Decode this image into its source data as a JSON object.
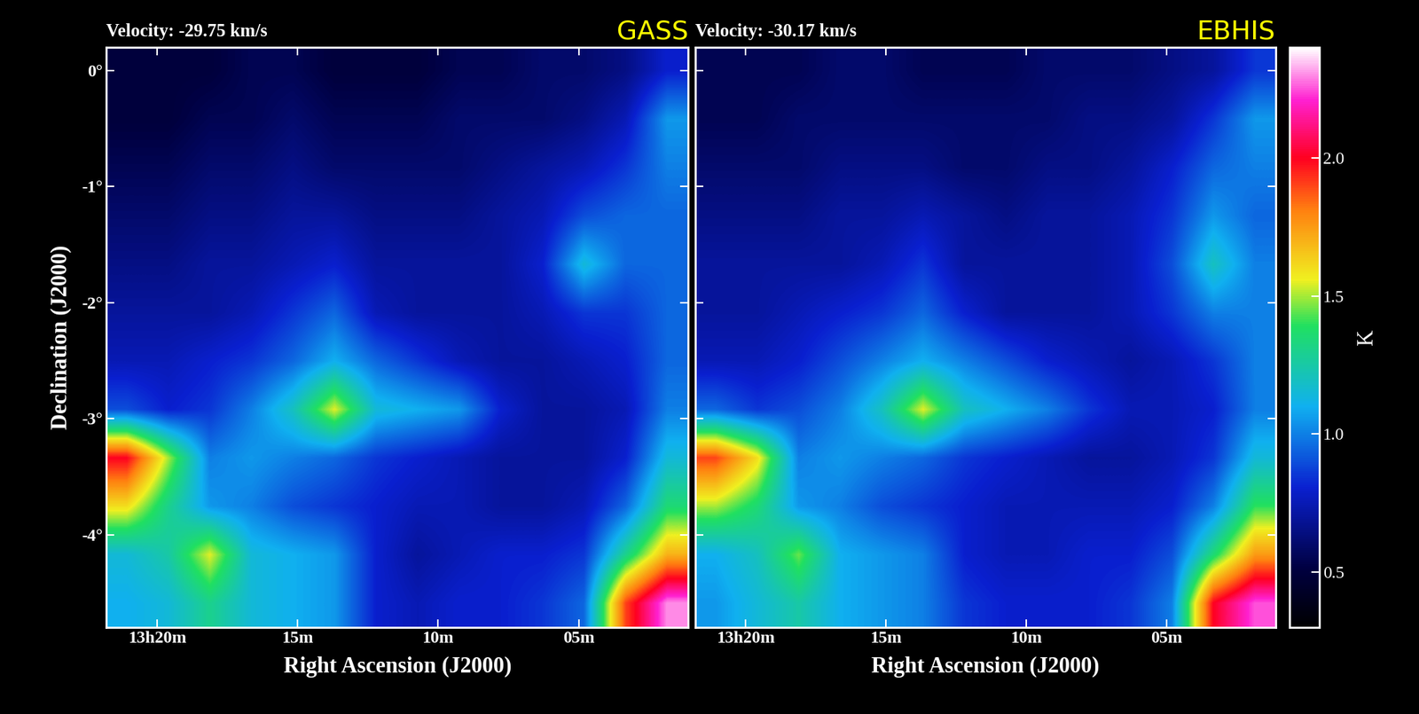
{
  "chart_data": [
    {
      "type": "heatmap",
      "title": "Velocity: -29.75 km/s",
      "annotations": [
        {
          "text": "GASS",
          "color": "#ffff00"
        }
      ],
      "x_label": "Right Ascension (J2000)",
      "y_label": "Declination (J2000)",
      "xlim": [
        21.8,
        1.1
      ],
      "ylim": [
        -4.8,
        0.2
      ],
      "xticks": [
        {
          "value": 20,
          "label": "13h20m"
        },
        {
          "value": 15,
          "label": "15m"
        },
        {
          "value": 10,
          "label": "10m"
        },
        {
          "value": 5,
          "label": "05m"
        }
      ],
      "yticks": [
        {
          "value": 0,
          "label": "0°"
        },
        {
          "value": -1,
          "label": "-1°"
        },
        {
          "value": -2,
          "label": "-2°"
        },
        {
          "value": -3,
          "label": "-3°"
        },
        {
          "value": -4,
          "label": "-4°"
        }
      ],
      "clim": [
        0.3,
        2.4
      ],
      "cells": [
        [
          0.5,
          0.5,
          0.5,
          0.55,
          0.55,
          0.5,
          0.5,
          0.5,
          0.55,
          0.55,
          0.6,
          0.6,
          0.65,
          0.8
        ],
        [
          0.5,
          0.5,
          0.55,
          0.55,
          0.6,
          0.55,
          0.55,
          0.55,
          0.6,
          0.6,
          0.6,
          0.65,
          0.75,
          1.05
        ],
        [
          0.55,
          0.55,
          0.6,
          0.6,
          0.65,
          0.6,
          0.6,
          0.6,
          0.6,
          0.65,
          0.7,
          0.75,
          0.85,
          1.0
        ],
        [
          0.6,
          0.6,
          0.65,
          0.65,
          0.7,
          0.7,
          0.65,
          0.65,
          0.65,
          0.7,
          0.75,
          0.9,
          0.95,
          0.95
        ],
        [
          0.65,
          0.65,
          0.7,
          0.7,
          0.75,
          0.8,
          0.7,
          0.7,
          0.7,
          0.7,
          0.8,
          1.15,
          0.95,
          0.95
        ],
        [
          0.7,
          0.7,
          0.7,
          0.75,
          0.85,
          0.95,
          0.75,
          0.7,
          0.7,
          0.7,
          0.75,
          0.85,
          0.85,
          0.95
        ],
        [
          0.75,
          0.75,
          0.8,
          0.85,
          0.95,
          1.1,
          0.95,
          0.85,
          0.75,
          0.7,
          0.7,
          0.75,
          0.8,
          0.95
        ],
        [
          0.9,
          0.8,
          0.85,
          1.0,
          1.2,
          1.55,
          1.15,
          1.1,
          1.05,
          0.8,
          0.7,
          0.7,
          0.75,
          1.0
        ],
        [
          2.0,
          1.5,
          1.0,
          1.05,
          1.0,
          0.95,
          0.85,
          0.8,
          0.75,
          0.7,
          0.7,
          0.7,
          0.8,
          1.15
        ],
        [
          1.6,
          1.3,
          1.05,
          1.0,
          0.9,
          0.85,
          0.8,
          0.75,
          0.75,
          0.7,
          0.7,
          0.75,
          0.95,
          1.35
        ],
        [
          1.15,
          1.25,
          1.55,
          1.15,
          1.1,
          1.05,
          0.8,
          0.7,
          0.75,
          0.8,
          0.8,
          0.85,
          1.3,
          1.7
        ],
        [
          1.1,
          1.15,
          1.3,
          1.15,
          1.1,
          1.05,
          0.8,
          0.75,
          0.8,
          0.8,
          0.85,
          0.95,
          1.9,
          2.3
        ]
      ]
    },
    {
      "type": "heatmap",
      "title": "Velocity: -30.17 km/s",
      "annotations": [
        {
          "text": "EBHIS",
          "color": "#ffff00"
        }
      ],
      "x_label": "Right Ascension (J2000)",
      "tick_labels": "x",
      "xlim": [
        21.8,
        1.1
      ],
      "ylim": [
        -4.8,
        0.2
      ],
      "xticks": [
        {
          "value": 20,
          "label": "13h20m"
        },
        {
          "value": 15,
          "label": "15m"
        },
        {
          "value": 10,
          "label": "10m"
        },
        {
          "value": 5,
          "label": "05m"
        }
      ],
      "yticks": [
        0,
        -1,
        -2,
        -3,
        -4
      ],
      "clim": [
        0.3,
        2.4
      ],
      "colorbar": {
        "label": "K",
        "ticks": [
          {
            "value": 0.5,
            "label": "0.5"
          },
          {
            "value": 1.0,
            "label": "1.0"
          },
          {
            "value": 1.5,
            "label": "1.5"
          },
          {
            "value": 2.0,
            "label": "2.0"
          }
        ]
      },
      "cells": [
        [
          0.55,
          0.55,
          0.55,
          0.6,
          0.6,
          0.55,
          0.55,
          0.55,
          0.6,
          0.6,
          0.6,
          0.65,
          0.7,
          0.85
        ],
        [
          0.55,
          0.55,
          0.6,
          0.6,
          0.6,
          0.6,
          0.6,
          0.6,
          0.6,
          0.65,
          0.65,
          0.7,
          0.85,
          1.05
        ],
        [
          0.6,
          0.6,
          0.6,
          0.65,
          0.65,
          0.65,
          0.6,
          0.6,
          0.65,
          0.65,
          0.7,
          0.8,
          0.95,
          1.0
        ],
        [
          0.65,
          0.65,
          0.65,
          0.7,
          0.7,
          0.75,
          0.7,
          0.65,
          0.7,
          0.7,
          0.75,
          0.85,
          1.05,
          0.95
        ],
        [
          0.7,
          0.7,
          0.7,
          0.7,
          0.75,
          0.85,
          0.7,
          0.7,
          0.7,
          0.7,
          0.75,
          0.9,
          1.2,
          1.0
        ],
        [
          0.7,
          0.7,
          0.75,
          0.8,
          0.85,
          0.95,
          0.8,
          0.7,
          0.7,
          0.7,
          0.75,
          0.85,
          1.0,
          1.0
        ],
        [
          0.75,
          0.75,
          0.8,
          0.9,
          1.0,
          1.1,
          1.0,
          0.9,
          0.8,
          0.75,
          0.7,
          0.75,
          0.85,
          1.0
        ],
        [
          0.95,
          0.85,
          0.9,
          1.0,
          1.2,
          1.55,
          1.2,
          1.1,
          1.0,
          0.85,
          0.75,
          0.75,
          0.8,
          1.0
        ],
        [
          1.9,
          1.6,
          1.0,
          1.05,
          1.0,
          0.95,
          0.85,
          0.8,
          0.75,
          0.7,
          0.7,
          0.75,
          0.85,
          1.15
        ],
        [
          1.5,
          1.35,
          1.05,
          1.0,
          0.9,
          0.85,
          0.8,
          0.75,
          0.75,
          0.75,
          0.75,
          0.8,
          1.0,
          1.4
        ],
        [
          1.1,
          1.2,
          1.45,
          1.1,
          1.05,
          1.0,
          0.8,
          0.75,
          0.75,
          0.8,
          0.8,
          0.9,
          1.35,
          1.75
        ],
        [
          1.05,
          1.15,
          1.25,
          1.1,
          1.05,
          1.0,
          0.85,
          0.8,
          0.8,
          0.8,
          0.85,
          1.0,
          2.0,
          2.25
        ]
      ]
    }
  ]
}
